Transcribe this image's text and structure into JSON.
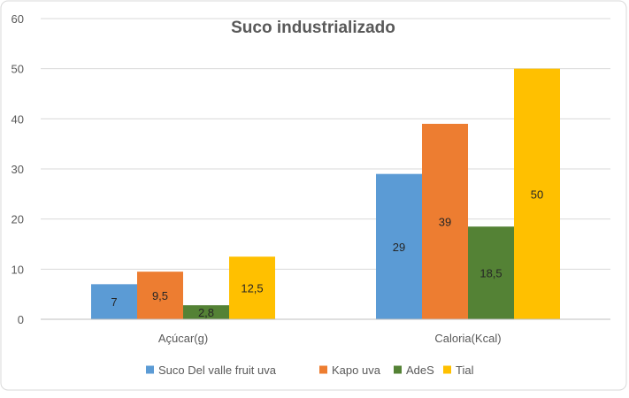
{
  "chart_data": {
    "type": "bar",
    "title": "Suco industrializado",
    "xlabel": "",
    "ylabel": "",
    "categories": [
      "Açúcar(g)",
      "Caloria(Kcal)"
    ],
    "series": [
      {
        "name": "Suco Del valle fruit uva",
        "values": [
          7,
          29
        ],
        "labels": [
          "7",
          "29"
        ],
        "color": "#5B9BD5"
      },
      {
        "name": "Kapo uva",
        "values": [
          9.5,
          39
        ],
        "labels": [
          "9,5",
          "39"
        ],
        "color": "#ED7D31"
      },
      {
        "name": "AdeS",
        "values": [
          2.8,
          18.5
        ],
        "labels": [
          "2,8",
          "18,5"
        ],
        "color": "#548235"
      },
      {
        "name": "Tial",
        "values": [
          12.5,
          50
        ],
        "labels": [
          "12,5",
          "50"
        ],
        "color": "#FFC000"
      }
    ],
    "ylim": [
      0,
      60
    ],
    "yticks": [
      0,
      10,
      20,
      30,
      40,
      50,
      60
    ],
    "grid": true,
    "legend": "bottom"
  }
}
